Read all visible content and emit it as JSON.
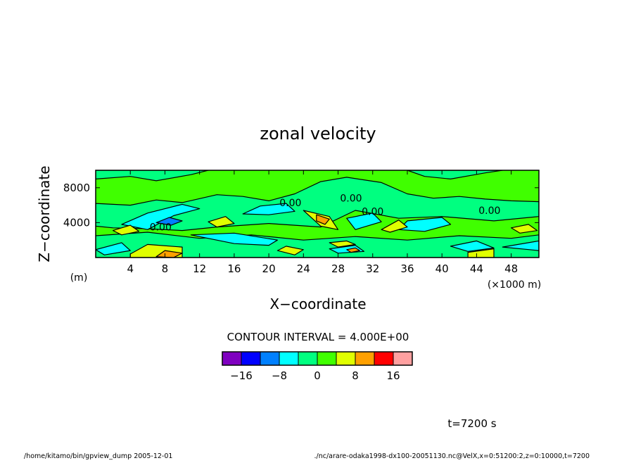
{
  "chart_data": {
    "type": "heatmap",
    "title": "zonal velocity",
    "xlabel": "X−coordinate",
    "ylabel": "Z−coordinate",
    "x_unit": "(×1000 m)",
    "y_unit": "(m)",
    "xlim": [
      0,
      51.2
    ],
    "ylim": [
      0,
      10000
    ],
    "x_ticks": [
      4,
      8,
      12,
      16,
      20,
      24,
      28,
      32,
      36,
      40,
      44,
      48
    ],
    "x_tick_labels": [
      "4",
      "8",
      "12",
      "16",
      "20",
      "24",
      "28",
      "32",
      "36",
      "40",
      "44",
      "48"
    ],
    "y_ticks": [
      4000,
      8000
    ],
    "y_tick_labels": [
      "4000",
      "8000"
    ],
    "contour_interval_label": "CONTOUR INTERVAL = 4.000E+00",
    "contour_labels": [
      {
        "text": "0.00",
        "x": 7.5,
        "y": 3500
      },
      {
        "text": "0.00",
        "x": 22.5,
        "y": 6300
      },
      {
        "text": "0.00",
        "x": 29.5,
        "y": 6800
      },
      {
        "text": "0.00",
        "x": 32.0,
        "y": 5300
      },
      {
        "text": "0.00",
        "x": 45.5,
        "y": 5400
      }
    ],
    "colorbar": {
      "boundaries": [
        -20,
        -16,
        -12,
        -8,
        -4,
        0,
        4,
        8,
        12,
        16,
        20
      ],
      "colors": [
        "#7f00c0",
        "#0000ff",
        "#0080ff",
        "#00ffff",
        "#00ff80",
        "#40ff00",
        "#e0ff00",
        "#ffa000",
        "#ff0000",
        "#ffa0a0"
      ],
      "tick_values": [
        -16,
        -8,
        0,
        8,
        16
      ],
      "tick_labels": [
        "−16",
        "−8",
        "0",
        "8",
        "16"
      ]
    },
    "time_label": "t=7200 s",
    "footer_left": "/home/kitamo/bin/gpview_dump  2005-12-01",
    "footer_right": "./nc/arare-odaka1998-dx100-20051130.nc@VelX,x=0:51200:2,z=0:10000,t=7200",
    "regions": [
      {
        "level": 4,
        "pts": [
          [
            0,
            6200
          ],
          [
            4,
            6000
          ],
          [
            7,
            6600
          ],
          [
            10,
            6300
          ],
          [
            14,
            7200
          ],
          [
            17,
            7000
          ],
          [
            20,
            6500
          ],
          [
            23,
            7300
          ],
          [
            26,
            8700
          ],
          [
            29,
            9200
          ],
          [
            33,
            8600
          ],
          [
            36,
            7300
          ],
          [
            39,
            6800
          ],
          [
            42,
            7000
          ],
          [
            45,
            6700
          ],
          [
            48,
            6500
          ],
          [
            51.2,
            6400
          ],
          [
            51.2,
            4700
          ],
          [
            46,
            4200
          ],
          [
            40,
            4700
          ],
          [
            35,
            4500
          ],
          [
            30,
            5400
          ],
          [
            26,
            3500
          ],
          [
            20,
            3900
          ],
          [
            14,
            3500
          ],
          [
            10,
            3100
          ],
          [
            6,
            3300
          ],
          [
            2,
            3400
          ],
          [
            0,
            3600
          ]
        ]
      },
      {
        "level": 4,
        "pts": [
          [
            0,
            9000
          ],
          [
            4,
            9300
          ],
          [
            7,
            8800
          ],
          [
            11,
            9500
          ],
          [
            13,
            10000
          ],
          [
            0,
            10000
          ]
        ]
      },
      {
        "level": 4,
        "pts": [
          [
            36,
            10000
          ],
          [
            38,
            9300
          ],
          [
            41,
            9000
          ],
          [
            45,
            9700
          ],
          [
            47,
            10000
          ]
        ]
      },
      {
        "level": 4,
        "pts": [
          [
            0,
            2500
          ],
          [
            6,
            2900
          ],
          [
            12,
            2200
          ],
          [
            18,
            2600
          ],
          [
            24,
            2000
          ],
          [
            30,
            2400
          ],
          [
            36,
            2000
          ],
          [
            42,
            2500
          ],
          [
            48,
            2200
          ],
          [
            51.2,
            2600
          ],
          [
            51.2,
            0
          ],
          [
            0,
            0
          ]
        ]
      },
      {
        "level": 3,
        "pts": [
          [
            20,
            4900
          ],
          [
            23,
            5300
          ],
          [
            22,
            6200
          ],
          [
            19,
            5900
          ],
          [
            17,
            5000
          ]
        ]
      },
      {
        "level": 3,
        "pts": [
          [
            6,
            3200
          ],
          [
            9,
            4800
          ],
          [
            12,
            5600
          ],
          [
            10,
            6100
          ],
          [
            6,
            5100
          ],
          [
            3,
            3800
          ]
        ]
      },
      {
        "level": 3,
        "pts": [
          [
            30,
            3200
          ],
          [
            33,
            4100
          ],
          [
            32,
            5100
          ],
          [
            29,
            4500
          ]
        ]
      },
      {
        "level": 3,
        "pts": [
          [
            36,
            4200
          ],
          [
            40,
            4600
          ],
          [
            41,
            3800
          ],
          [
            38,
            3000
          ],
          [
            35,
            3200
          ]
        ]
      },
      {
        "level": 3,
        "pts": [
          [
            11,
            2600
          ],
          [
            16,
            1600
          ],
          [
            20,
            1400
          ],
          [
            21,
            2000
          ],
          [
            16,
            2800
          ]
        ]
      },
      {
        "level": 3,
        "pts": [
          [
            27,
            1000
          ],
          [
            30,
            1400
          ],
          [
            31,
            700
          ],
          [
            28,
            500
          ]
        ]
      },
      {
        "level": 3,
        "pts": [
          [
            41,
            1300
          ],
          [
            44,
            1900
          ],
          [
            46,
            1100
          ],
          [
            43,
            700
          ]
        ]
      },
      {
        "level": 3,
        "pts": [
          [
            0,
            900
          ],
          [
            3,
            1700
          ],
          [
            4,
            800
          ],
          [
            1,
            300
          ]
        ]
      },
      {
        "level": 3,
        "pts": [
          [
            47,
            1200
          ],
          [
            51.2,
            1900
          ],
          [
            51.2,
            800
          ]
        ]
      },
      {
        "level": 2,
        "pts": [
          [
            7,
            4000
          ],
          [
            8.5,
            4600
          ],
          [
            10,
            4200
          ],
          [
            8.7,
            3700
          ]
        ]
      },
      {
        "level": 6,
        "pts": [
          [
            24,
            5400
          ],
          [
            27,
            4700
          ],
          [
            28,
            3200
          ],
          [
            26,
            3600
          ]
        ]
      },
      {
        "level": 6,
        "pts": [
          [
            13,
            4100
          ],
          [
            15,
            4700
          ],
          [
            16,
            3900
          ],
          [
            14,
            3500
          ]
        ]
      },
      {
        "level": 6,
        "pts": [
          [
            2,
            3100
          ],
          [
            4,
            3700
          ],
          [
            5,
            3000
          ],
          [
            3,
            2600
          ]
        ]
      },
      {
        "level": 6,
        "pts": [
          [
            33,
            3200
          ],
          [
            35,
            4300
          ],
          [
            36,
            3500
          ],
          [
            34,
            2900
          ]
        ]
      },
      {
        "level": 6,
        "pts": [
          [
            48,
            3400
          ],
          [
            50,
            3800
          ],
          [
            51,
            3100
          ],
          [
            49,
            2800
          ]
        ]
      },
      {
        "level": 6,
        "pts": [
          [
            4,
            400
          ],
          [
            6,
            1500
          ],
          [
            10,
            1200
          ],
          [
            10,
            0
          ],
          [
            4,
            0
          ]
        ]
      },
      {
        "level": 6,
        "pts": [
          [
            21,
            800
          ],
          [
            22,
            1300
          ],
          [
            24,
            900
          ],
          [
            23,
            300
          ]
        ]
      },
      {
        "level": 6,
        "pts": [
          [
            27,
            1700
          ],
          [
            29,
            1900
          ],
          [
            30,
            1500
          ],
          [
            28,
            1200
          ]
        ]
      },
      {
        "level": 6,
        "pts": [
          [
            43,
            600
          ],
          [
            46,
            1000
          ],
          [
            46,
            0
          ],
          [
            43,
            0
          ]
        ]
      },
      {
        "level": 7,
        "pts": [
          [
            7,
            100
          ],
          [
            8,
            800
          ],
          [
            10,
            500
          ],
          [
            9,
            0
          ]
        ]
      },
      {
        "level": 7,
        "pts": [
          [
            25.5,
            4900
          ],
          [
            27,
            4400
          ],
          [
            26.5,
            3800
          ],
          [
            25.5,
            4200
          ]
        ]
      },
      {
        "level": 7,
        "pts": [
          [
            29,
            900
          ],
          [
            30,
            1100
          ],
          [
            30.5,
            800
          ],
          [
            29.5,
            600
          ]
        ]
      }
    ]
  }
}
